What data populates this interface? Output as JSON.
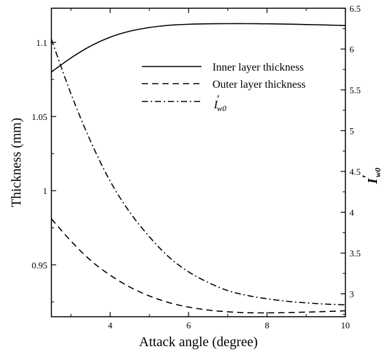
{
  "chart_data": {
    "type": "line",
    "xlabel": "Attack angle (degree)",
    "ylabel_left": "Thickness (mm)",
    "ylabel_right": {
      "base": "I",
      "prime": "′",
      "sub": "w0"
    },
    "xlim": [
      2.5,
      10
    ],
    "ylim_left": [
      0.915,
      1.123
    ],
    "ylim_right": [
      2.72,
      6.5
    ],
    "x_ticks": [
      4,
      6,
      8,
      10
    ],
    "x_tick_labels": [
      "4",
      "6",
      "8",
      "10"
    ],
    "y_left_ticks": [
      0.95,
      1.0,
      1.05,
      1.1
    ],
    "y_left_tick_labels": [
      "0.95",
      "1",
      "1.05",
      "1.1"
    ],
    "y_right_ticks": [
      3,
      3.5,
      4,
      4.5,
      5,
      5.5,
      6,
      6.5
    ],
    "y_right_tick_labels": [
      "3",
      "3.5",
      "4",
      "4.5",
      "5",
      "5.5",
      "6",
      "6.5"
    ],
    "legend_position": "upper-right",
    "grid": false,
    "series": [
      {
        "name": "Inner layer thickness",
        "axis": "left",
        "style": "solid",
        "x": [
          2.5,
          3,
          3.5,
          4,
          4.5,
          5,
          5.5,
          6,
          6.5,
          7,
          7.5,
          8,
          8.5,
          9,
          9.5,
          10
        ],
        "y": [
          1.08,
          1.0895,
          1.0975,
          1.1035,
          1.1075,
          1.11,
          1.1115,
          1.1122,
          1.1125,
          1.1126,
          1.1126,
          1.1125,
          1.1123,
          1.112,
          1.1117,
          1.1113
        ]
      },
      {
        "name": "Outer layer thickness",
        "axis": "left",
        "style": "dashed",
        "x": [
          2.5,
          3,
          3.5,
          4,
          4.5,
          5,
          5.5,
          6,
          6.5,
          7,
          7.5,
          8,
          8.5,
          9,
          9.5,
          10
        ],
        "y": [
          0.981,
          0.966,
          0.953,
          0.943,
          0.935,
          0.929,
          0.9245,
          0.9215,
          0.9195,
          0.9183,
          0.9177,
          0.9176,
          0.9178,
          0.9181,
          0.9185,
          0.919
        ]
      },
      {
        "name": {
          "base": "I",
          "prime": "′",
          "sub": "w0"
        },
        "axis": "right",
        "style": "dashdot",
        "x": [
          2.5,
          3,
          3.5,
          4,
          4.5,
          5,
          5.5,
          6,
          6.5,
          7,
          7.5,
          8,
          8.5,
          9,
          9.5,
          10
        ],
        "y": [
          6.12,
          5.45,
          4.87,
          4.38,
          4.0,
          3.7,
          3.45,
          3.27,
          3.14,
          3.04,
          2.98,
          2.94,
          2.91,
          2.89,
          2.875,
          2.865
        ]
      }
    ]
  }
}
